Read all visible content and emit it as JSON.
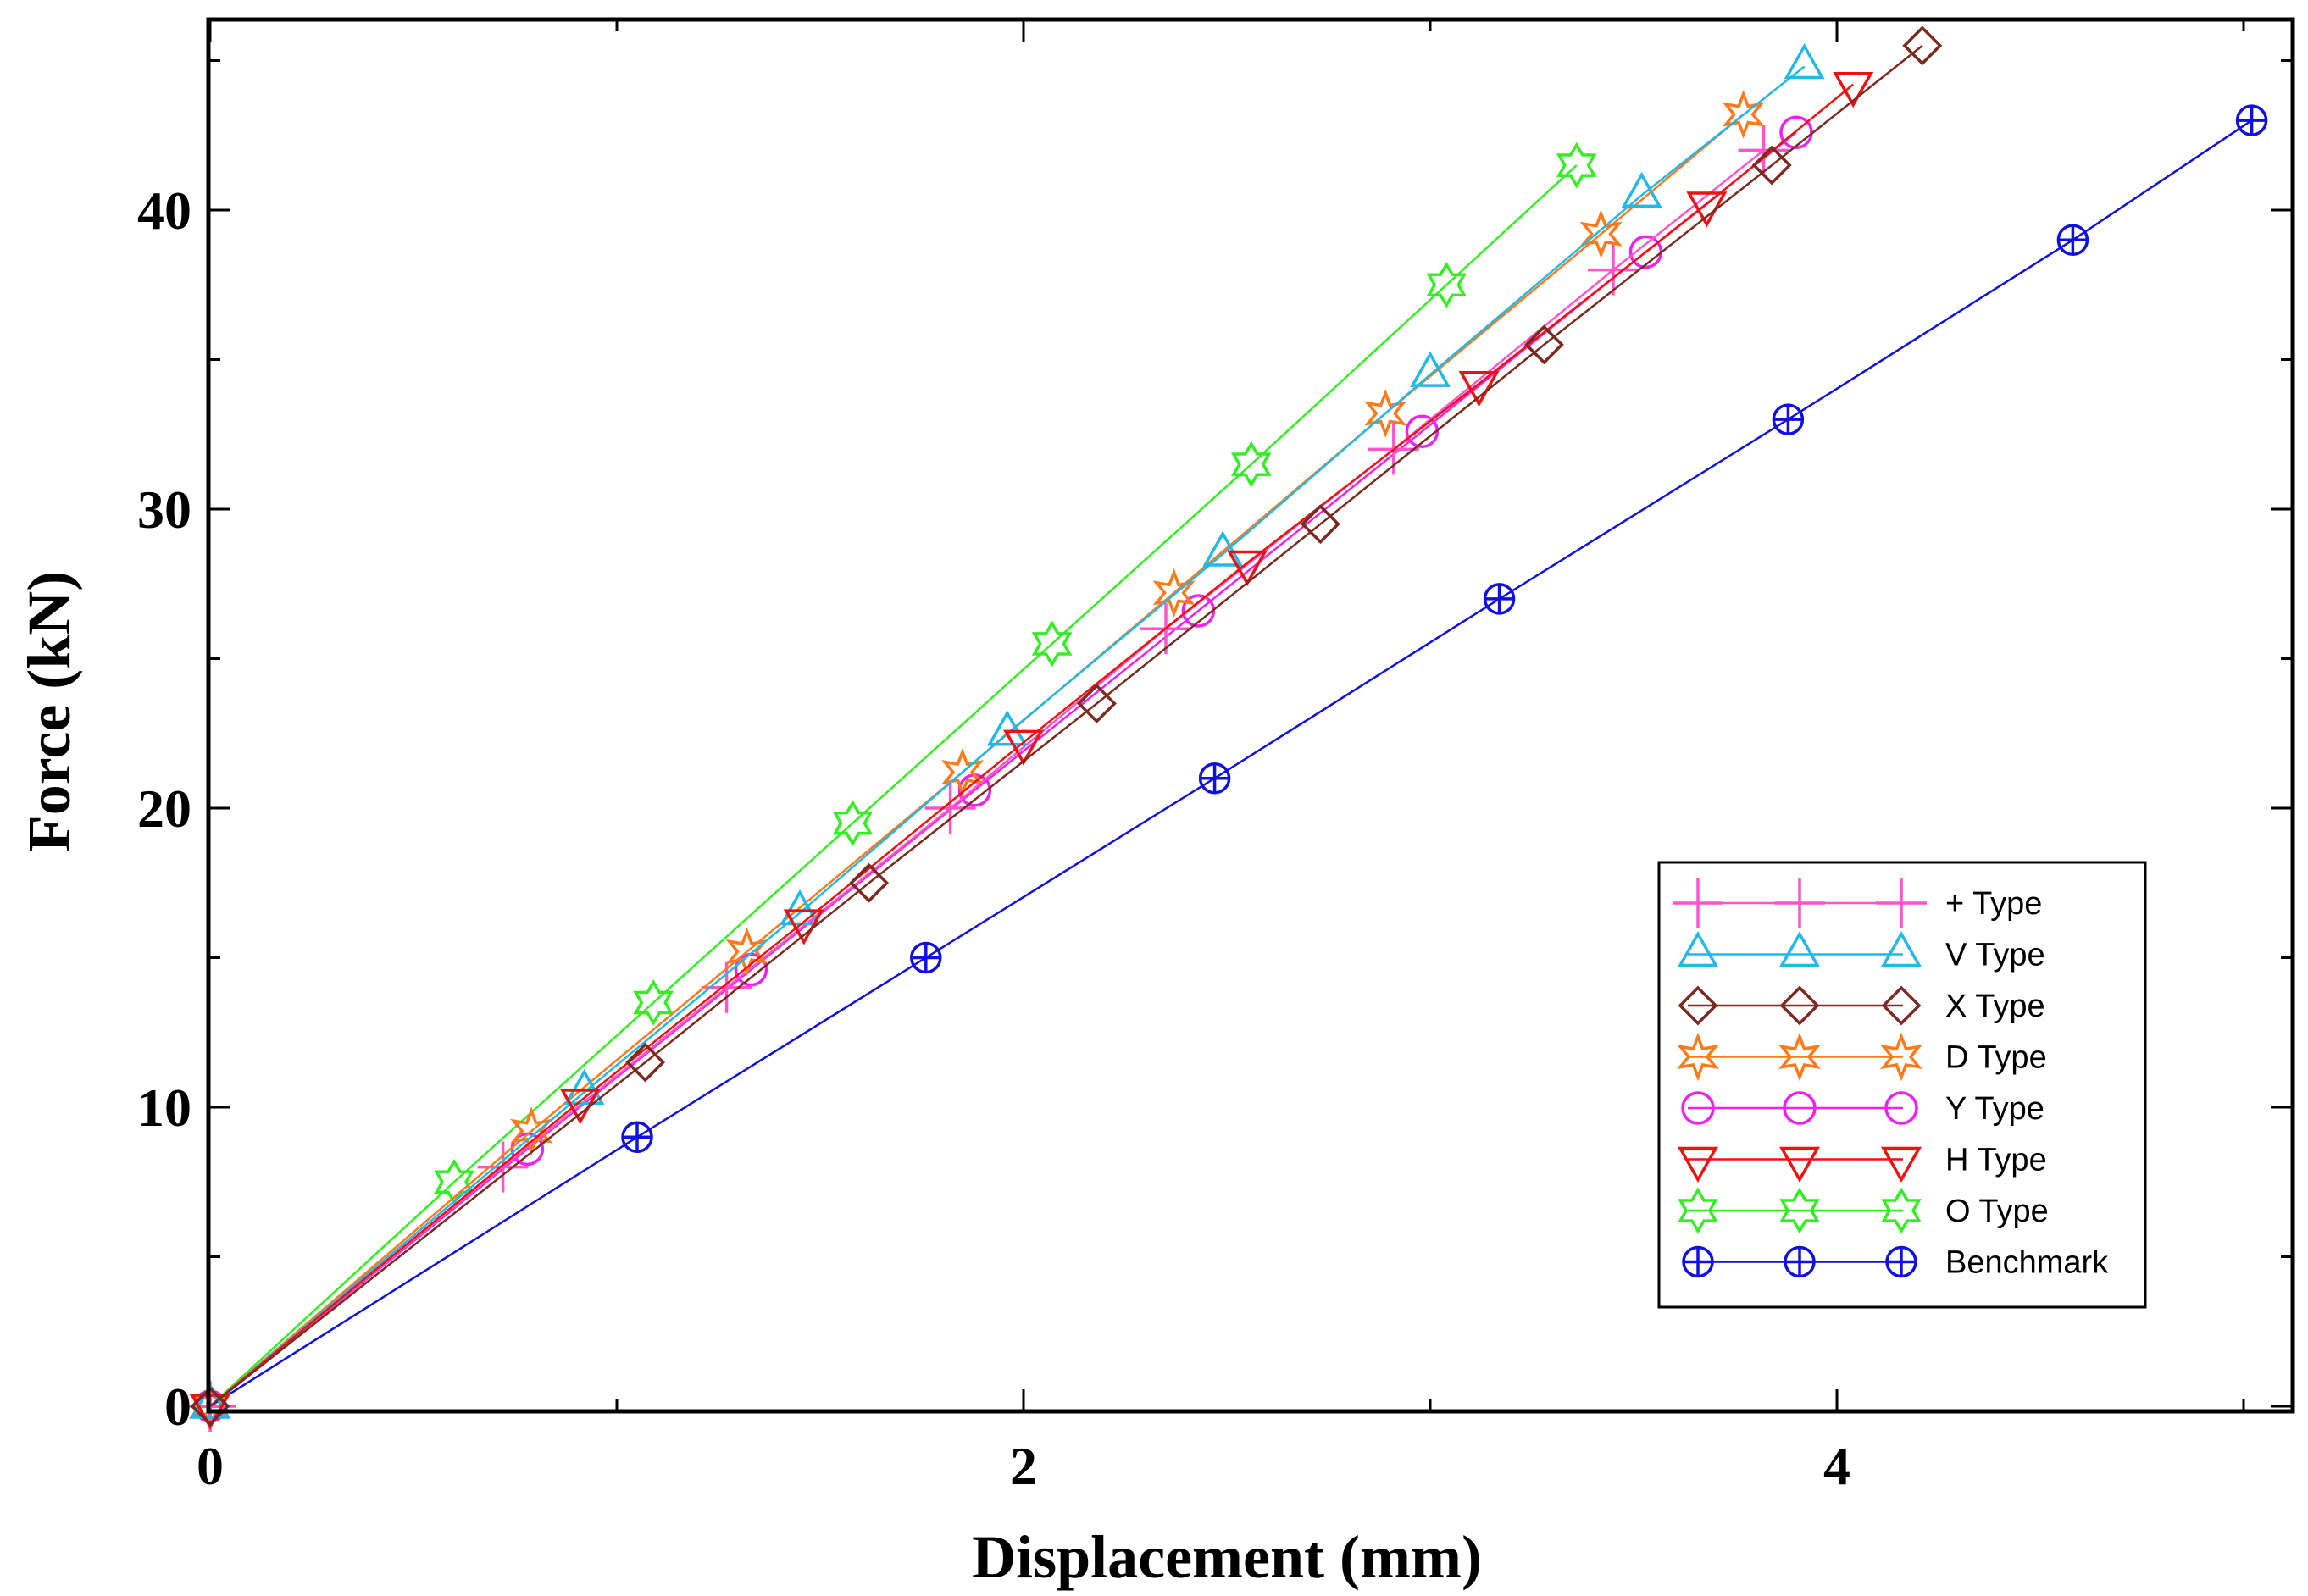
{
  "chart_data": {
    "type": "line",
    "xlabel": "Displacement (mm)",
    "ylabel": "Force (kN)",
    "xlim": [
      0,
      5.1
    ],
    "ylim": [
      0,
      46.5
    ],
    "x_major_ticks": [
      0,
      2,
      4
    ],
    "y_major_ticks": [
      0,
      10,
      20,
      30,
      40
    ],
    "x_tick_labels": [
      "0",
      "2",
      "4"
    ],
    "y_tick_labels": [
      "0",
      "10",
      "20",
      "30",
      "40"
    ],
    "legend_position": "bottom-right",
    "series": [
      {
        "name": "+ Type",
        "label": "+ Type",
        "color": "#ff55cc",
        "marker": "plus",
        "x": [
          0,
          0.72,
          1.27,
          1.82,
          2.35,
          2.91,
          3.45,
          3.82
        ],
        "y": [
          0,
          8,
          14,
          20,
          26,
          32,
          38,
          42
        ]
      },
      {
        "name": "V Type",
        "label": "V Type",
        "color": "#22b8e8",
        "marker": "triangle-up",
        "x": [
          0,
          0.92,
          1.45,
          1.96,
          2.49,
          3.0,
          3.52,
          3.92
        ],
        "y": [
          0,
          10.5,
          16.5,
          22.5,
          28.5,
          34.5,
          40.5,
          44.8
        ]
      },
      {
        "name": "X Type",
        "label": "X Type",
        "color": "#7a2a20",
        "marker": "diamond",
        "x": [
          0,
          1.07,
          1.62,
          2.18,
          2.73,
          3.28,
          3.84,
          4.21
        ],
        "y": [
          0,
          11.5,
          17.5,
          23.5,
          29.5,
          35.5,
          41.5,
          45.5
        ]
      },
      {
        "name": "D Type",
        "label": "D Type",
        "color": "#ff7a1a",
        "marker": "star6",
        "x": [
          0,
          0.79,
          1.32,
          1.85,
          2.37,
          2.89,
          3.42,
          3.77
        ],
        "y": [
          0,
          9.2,
          15.2,
          21.2,
          27.2,
          33.2,
          39.2,
          43.2
        ]
      },
      {
        "name": "Y Type",
        "label": "Y Type",
        "color": "#ee22ee",
        "marker": "circle",
        "x": [
          0,
          0.78,
          1.33,
          1.88,
          2.43,
          2.98,
          3.53,
          3.9
        ],
        "y": [
          0,
          8.6,
          14.6,
          20.6,
          26.6,
          32.6,
          38.6,
          42.6
        ]
      },
      {
        "name": "H Type",
        "label": "H Type",
        "color": "#ee1111",
        "marker": "triangle-down",
        "x": [
          0,
          0.91,
          1.46,
          2.0,
          2.55,
          3.12,
          3.68,
          4.04
        ],
        "y": [
          0,
          10.2,
          16.2,
          22.2,
          28.2,
          34.2,
          40.2,
          44.2
        ]
      },
      {
        "name": "O Type",
        "label": "O Type",
        "color": "#33ee22",
        "marker": "star-of-david",
        "x": [
          0,
          0.6,
          1.09,
          1.58,
          2.07,
          2.56,
          3.04,
          3.36
        ],
        "y": [
          0,
          7.5,
          13.5,
          19.5,
          25.5,
          31.5,
          37.5,
          41.5
        ]
      },
      {
        "name": "Benchmark",
        "label": "Benchmark",
        "color": "#1111dd",
        "marker": "circle-plus",
        "x": [
          0,
          1.05,
          1.76,
          2.47,
          3.17,
          3.88,
          4.58,
          5.02
        ],
        "y": [
          0,
          9,
          15,
          21,
          27,
          33,
          39,
          43
        ]
      }
    ]
  }
}
